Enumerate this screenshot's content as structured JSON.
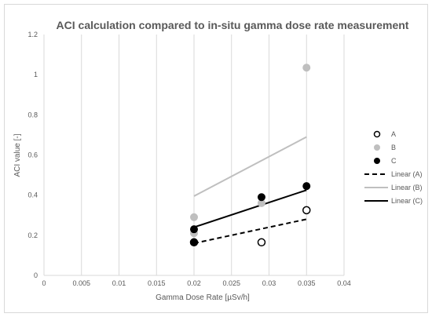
{
  "chart_data": {
    "type": "scatter",
    "title": "ACI calculation compared to in-situ gamma dose rate measurement",
    "xlabel": "Gamma Dose Rate [µSv/h]",
    "ylabel": "ACI value [-]",
    "xlim": [
      0,
      0.04
    ],
    "ylim": [
      0,
      1.2
    ],
    "x_ticks": [
      "0",
      "0.005",
      "0.01",
      "0.015",
      "0.02",
      "0.025",
      "0.03",
      "0.035",
      "0.04"
    ],
    "y_ticks": [
      "0",
      "0.2",
      "0.4",
      "0.6",
      "0.8",
      "1",
      "1.2"
    ],
    "grid": "vertical",
    "legend_position": "right",
    "series": [
      {
        "name": "A",
        "marker": "hollow-circle",
        "color": "#000000",
        "points": [
          [
            0.02,
            0.165
          ],
          [
            0.029,
            0.165
          ],
          [
            0.035,
            0.325
          ]
        ]
      },
      {
        "name": "B",
        "marker": "filled-circle",
        "color": "#bfbfbf",
        "points": [
          [
            0.02,
            0.29
          ],
          [
            0.02,
            0.21
          ],
          [
            0.029,
            0.36
          ],
          [
            0.035,
            1.035
          ]
        ]
      },
      {
        "name": "C",
        "marker": "filled-circle",
        "color": "#000000",
        "points": [
          [
            0.02,
            0.23
          ],
          [
            0.02,
            0.165
          ],
          [
            0.029,
            0.39
          ],
          [
            0.035,
            0.445
          ]
        ]
      }
    ],
    "trendlines": [
      {
        "name": "Linear (A)",
        "style": "dashed",
        "color": "#000000",
        "x": [
          0.02,
          0.035
        ],
        "y": [
          0.16,
          0.28
        ]
      },
      {
        "name": "Linear (B)",
        "style": "solid",
        "color": "#bfbfbf",
        "x": [
          0.02,
          0.035
        ],
        "y": [
          0.395,
          0.69
        ]
      },
      {
        "name": "Linear (C)",
        "style": "solid",
        "color": "#000000",
        "x": [
          0.02,
          0.035
        ],
        "y": [
          0.24,
          0.425
        ]
      }
    ]
  }
}
